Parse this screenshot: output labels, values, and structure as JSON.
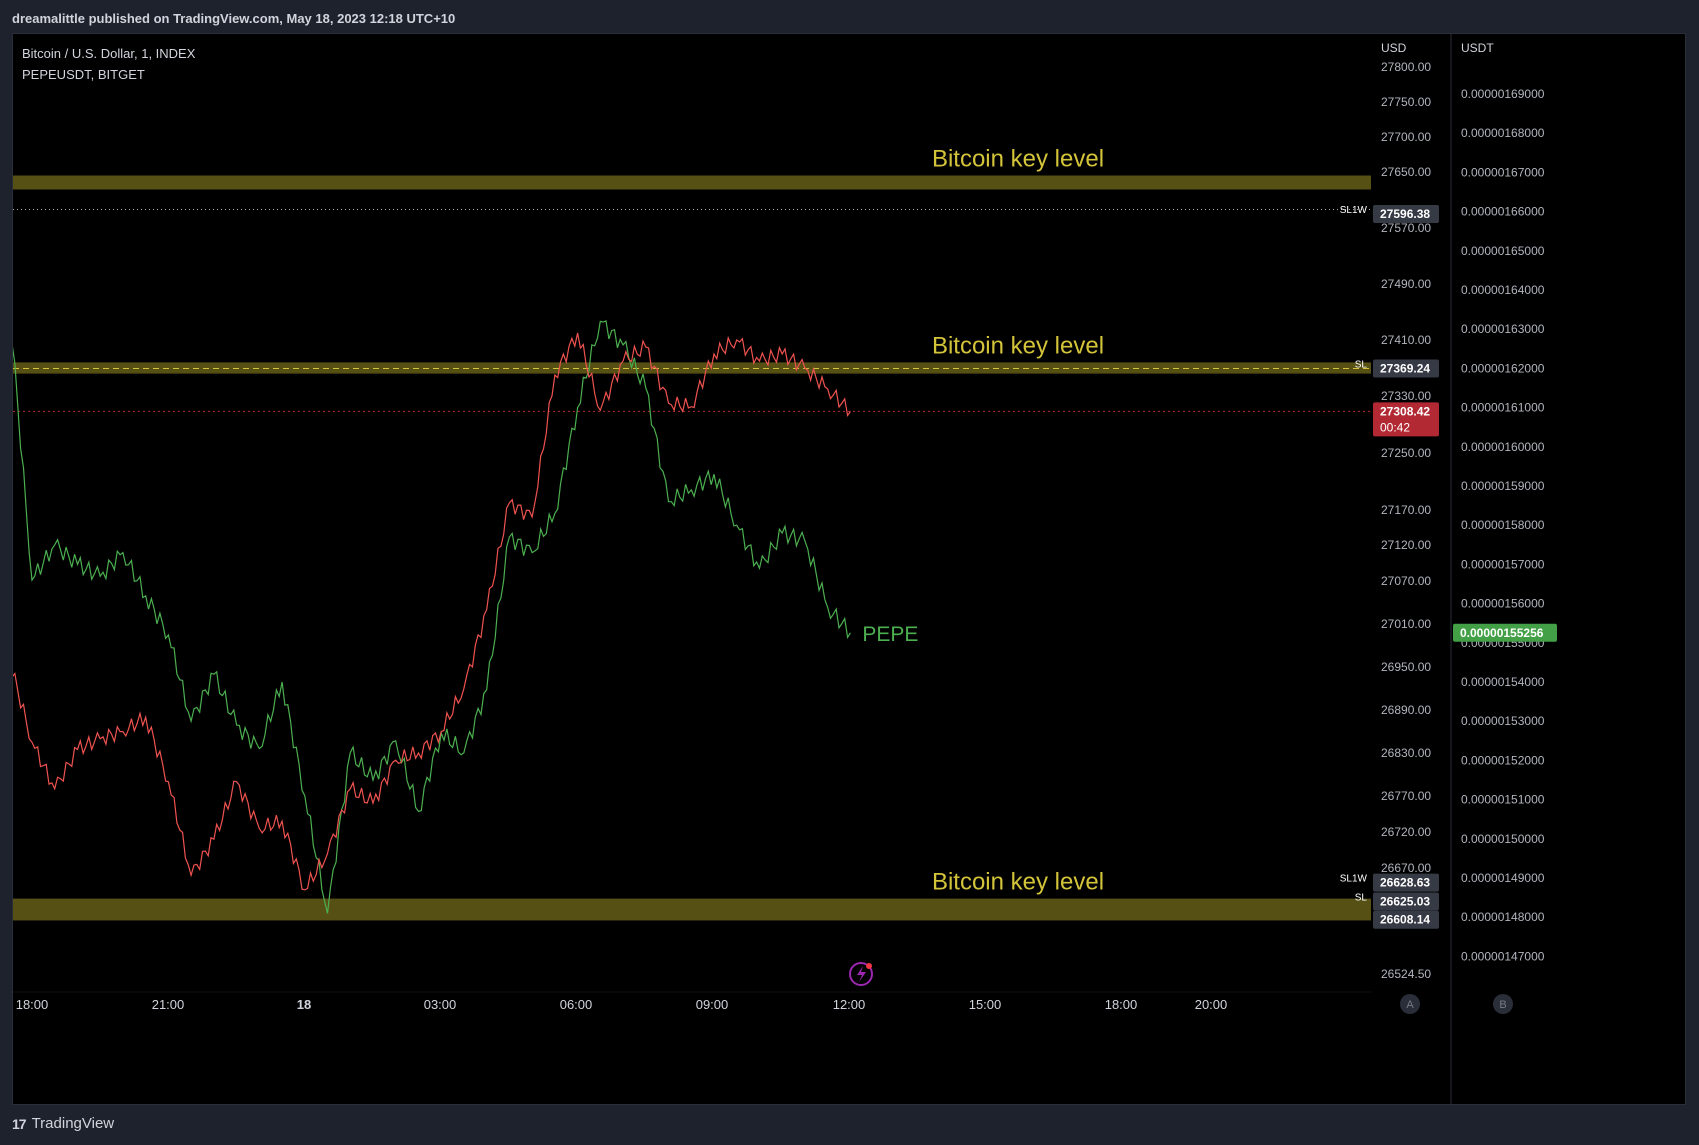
{
  "header": {
    "published_text": "dreamalittle published on TradingView.com, May 18, 2023 12:18 UTC+10"
  },
  "symbols": {
    "primary": "Bitcoin / U.S. Dollar, 1, INDEX",
    "secondary": "PEPEUSDT, BITGET"
  },
  "footer": {
    "logo_mark": "17",
    "logo_text": "TradingView"
  },
  "colors": {
    "background": "#000000",
    "bitcoin_up": "#26a69a",
    "bitcoin_down": "#ef5350",
    "pepe_line": "#4caf50",
    "key_level_band": "#5b5416",
    "key_level_text": "#d4c43a",
    "current_price_badge": "#b22833",
    "pepe_price_badge": "#43a047",
    "label_badge": "#363a45"
  },
  "chart_data": {
    "type": "line",
    "x_axis": {
      "tick_labels": [
        "18:00",
        "21:00",
        "18",
        "03:00",
        "06:00",
        "09:00",
        "12:00",
        "15:00",
        "18:00",
        "20:00"
      ],
      "bold_labels": [
        "18"
      ]
    },
    "left_axis": {
      "unit": "USD",
      "ticks": [
        "27800.00",
        "27750.00",
        "27700.00",
        "27650.00",
        "27570.00",
        "27490.00",
        "27410.00",
        "27330.00",
        "27250.00",
        "27170.00",
        "27120.00",
        "27070.00",
        "27010.00",
        "26950.00",
        "26890.00",
        "26830.00",
        "26770.00",
        "26720.00",
        "26670.00",
        "26524.50"
      ]
    },
    "right_axis": {
      "unit": "USDT",
      "ticks": [
        "0.00000169000",
        "0.00000168000",
        "0.00000167000",
        "0.00000166000",
        "0.00000165000",
        "0.00000164000",
        "0.00000163000",
        "0.00000162000",
        "0.00000161000",
        "0.00000160000",
        "0.00000159000",
        "0.00000158000",
        "0.00000157000",
        "0.00000156000",
        "0.00000155000",
        "0.00000154000",
        "0.00000153000",
        "0.00000152000",
        "0.00000151000",
        "0.00000150000",
        "0.00000149000",
        "0.00000148000",
        "0.00000147000"
      ]
    },
    "price_badges": {
      "sl1w_top": {
        "label": "SL1W",
        "value": "27596.38"
      },
      "sl_mid": {
        "label": "SL",
        "value": "27369.24"
      },
      "current": {
        "value": "27308.42",
        "countdown": "00:42"
      },
      "bottom_a": {
        "label": "SL1W",
        "value": "26628.63"
      },
      "bottom_b": {
        "label": "SL",
        "value": "26625.03"
      },
      "bottom_c": {
        "value": "26608.14"
      },
      "pepe_current": {
        "value": "0.00000155256"
      }
    },
    "key_levels": [
      {
        "label": "Bitcoin key level",
        "low": 27625,
        "high": 27645
      },
      {
        "label": "Bitcoin key level",
        "low": 27362,
        "high": 27378
      },
      {
        "label": "Bitcoin key level",
        "low": 26598,
        "high": 26628
      }
    ],
    "annotations": {
      "pepe_label": "PEPE"
    },
    "scale_buttons": {
      "left": "A",
      "right": "B"
    },
    "series": [
      {
        "name": "Bitcoin / U.S. Dollar",
        "axis": "USD",
        "points": [
          [
            "17:30",
            26960
          ],
          [
            "18:00",
            26845
          ],
          [
            "18:30",
            26780
          ],
          [
            "19:00",
            26835
          ],
          [
            "19:30",
            26850
          ],
          [
            "20:00",
            26860
          ],
          [
            "20:30",
            26880
          ],
          [
            "21:00",
            26790
          ],
          [
            "21:30",
            26660
          ],
          [
            "22:00",
            26710
          ],
          [
            "22:30",
            26790
          ],
          [
            "23:00",
            26725
          ],
          [
            "23:30",
            26735
          ],
          [
            "00:00",
            26640
          ],
          [
            "00:30",
            26690
          ],
          [
            "01:00",
            26780
          ],
          [
            "01:30",
            26760
          ],
          [
            "02:00",
            26820
          ],
          [
            "02:30",
            26830
          ],
          [
            "03:00",
            26860
          ],
          [
            "03:30",
            26920
          ],
          [
            "04:00",
            27030
          ],
          [
            "04:30",
            27180
          ],
          [
            "05:00",
            27160
          ],
          [
            "05:30",
            27360
          ],
          [
            "06:00",
            27420
          ],
          [
            "06:30",
            27310
          ],
          [
            "07:00",
            27380
          ],
          [
            "07:30",
            27400
          ],
          [
            "08:00",
            27320
          ],
          [
            "08:30",
            27315
          ],
          [
            "09:00",
            27390
          ],
          [
            "09:30",
            27410
          ],
          [
            "10:00",
            27380
          ],
          [
            "10:30",
            27390
          ],
          [
            "11:00",
            27370
          ],
          [
            "11:30",
            27340
          ],
          [
            "12:00",
            27308.42
          ]
        ]
      },
      {
        "name": "PEPEUSDT",
        "axis": "USDT",
        "points": [
          [
            "17:30",
            1.637e-06
          ],
          [
            "18:00",
            1.566e-06
          ],
          [
            "18:30",
            1.575e-06
          ],
          [
            "19:00",
            1.57e-06
          ],
          [
            "19:30",
            1.567e-06
          ],
          [
            "20:00",
            1.573e-06
          ],
          [
            "20:30",
            1.562e-06
          ],
          [
            "21:00",
            1.552e-06
          ],
          [
            "21:30",
            1.53e-06
          ],
          [
            "22:00",
            1.542e-06
          ],
          [
            "22:30",
            1.529e-06
          ],
          [
            "23:00",
            1.523e-06
          ],
          [
            "23:30",
            1.54e-06
          ],
          [
            "00:00",
            1.511e-06
          ],
          [
            "00:30",
            1.481e-06
          ],
          [
            "01:00",
            1.522e-06
          ],
          [
            "01:30",
            1.515e-06
          ],
          [
            "02:00",
            1.525e-06
          ],
          [
            "02:30",
            1.507e-06
          ],
          [
            "03:00",
            1.527e-06
          ],
          [
            "03:30",
            1.522e-06
          ],
          [
            "04:00",
            1.538e-06
          ],
          [
            "04:30",
            1.577e-06
          ],
          [
            "05:00",
            1.573e-06
          ],
          [
            "05:30",
            1.583e-06
          ],
          [
            "06:00",
            1.61e-06
          ],
          [
            "06:30",
            1.632e-06
          ],
          [
            "07:00",
            1.626e-06
          ],
          [
            "07:30",
            1.615e-06
          ],
          [
            "08:00",
            1.586e-06
          ],
          [
            "08:30",
            1.589e-06
          ],
          [
            "09:00",
            1.593e-06
          ],
          [
            "09:30",
            1.58e-06
          ],
          [
            "10:00",
            1.569e-06
          ],
          [
            "10:30",
            1.578e-06
          ],
          [
            "11:00",
            1.576e-06
          ],
          [
            "11:30",
            1.559e-06
          ],
          [
            "12:00",
            1.55256e-06
          ]
        ]
      }
    ]
  }
}
